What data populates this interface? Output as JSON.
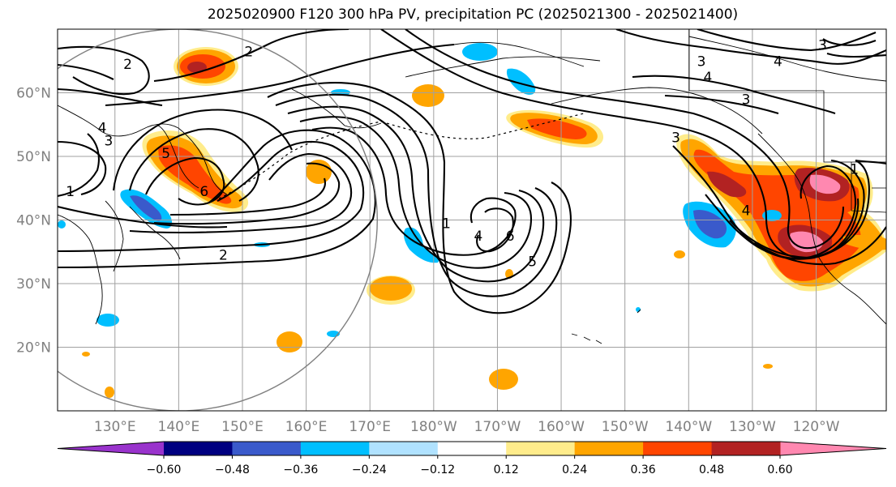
{
  "title": "2025020900 F120 300 hPa PV, precipitation PC (2025021300 - 2025021400)",
  "map": {
    "projection": "equirectangular",
    "lon_range_deg_east": [
      121,
      251
    ],
    "lat_range": [
      10,
      70
    ],
    "grid_on": true,
    "lon_tick_labels": [
      "130°E",
      "140°E",
      "150°E",
      "160°E",
      "170°E",
      "180°W",
      "170°W",
      "160°W",
      "150°W",
      "140°W",
      "130°W",
      "120°W"
    ],
    "lon_tick_values_deg_east": [
      130,
      140,
      150,
      160,
      170,
      180,
      190,
      200,
      210,
      220,
      230,
      240
    ],
    "lat_tick_labels": [
      "60°N",
      "50°N",
      "40°N",
      "30°N",
      "20°N"
    ],
    "lat_tick_values": [
      60,
      50,
      40,
      30,
      20
    ],
    "circle_center": {
      "lon": 140,
      "lat": 40
    },
    "circle_radius_deg_lat": 30
  },
  "pv_contour_labels": [
    {
      "text": "2",
      "lon": 151,
      "lat": 66.5
    },
    {
      "text": "2",
      "lon": 132,
      "lat": 64.5
    },
    {
      "text": "4",
      "lon": 128,
      "lat": 54.5
    },
    {
      "text": "3",
      "lon": 129,
      "lat": 52.5
    },
    {
      "text": "5",
      "lon": 138,
      "lat": 50.5
    },
    {
      "text": "6",
      "lon": 144,
      "lat": 44.5
    },
    {
      "text": "1",
      "lon": 123,
      "lat": 44.5
    },
    {
      "text": "2",
      "lon": 147,
      "lat": 34.5
    },
    {
      "text": "1",
      "lon": 182,
      "lat": 39.5
    },
    {
      "text": "4",
      "lon": 187,
      "lat": 37.5
    },
    {
      "text": "6",
      "lon": 192,
      "lat": 37.5
    },
    {
      "text": "5",
      "lon": 195.5,
      "lat": 33.5
    },
    {
      "text": "3",
      "lon": 222,
      "lat": 65
    },
    {
      "text": "4",
      "lon": 234,
      "lat": 65
    },
    {
      "text": "3",
      "lon": 241,
      "lat": 67.5
    },
    {
      "text": "4",
      "lon": 223,
      "lat": 62.5
    },
    {
      "text": "3",
      "lon": 229,
      "lat": 59
    },
    {
      "text": "3",
      "lon": 218,
      "lat": 53
    },
    {
      "text": "1",
      "lon": 246,
      "lat": 48
    },
    {
      "text": "4",
      "lon": 229,
      "lat": 41.5
    }
  ],
  "colorbar": {
    "extend": "both",
    "boundaries": [
      -0.6,
      -0.48,
      -0.36,
      -0.24,
      -0.12,
      0.12,
      0.24,
      0.36,
      0.48,
      0.6
    ],
    "colors": [
      "#9933cc",
      "#000080",
      "#3a5acb",
      "#00bfff",
      "#b0e2ff",
      "#ffffff",
      "#ffec8b",
      "#ffa500",
      "#ff4500",
      "#b22222",
      "#ff88b0"
    ],
    "tick_labels": [
      "−0.60",
      "−0.48",
      "−0.36",
      "−0.24",
      "−0.12",
      "0.12",
      "0.24",
      "0.36",
      "0.48",
      "0.60"
    ]
  }
}
